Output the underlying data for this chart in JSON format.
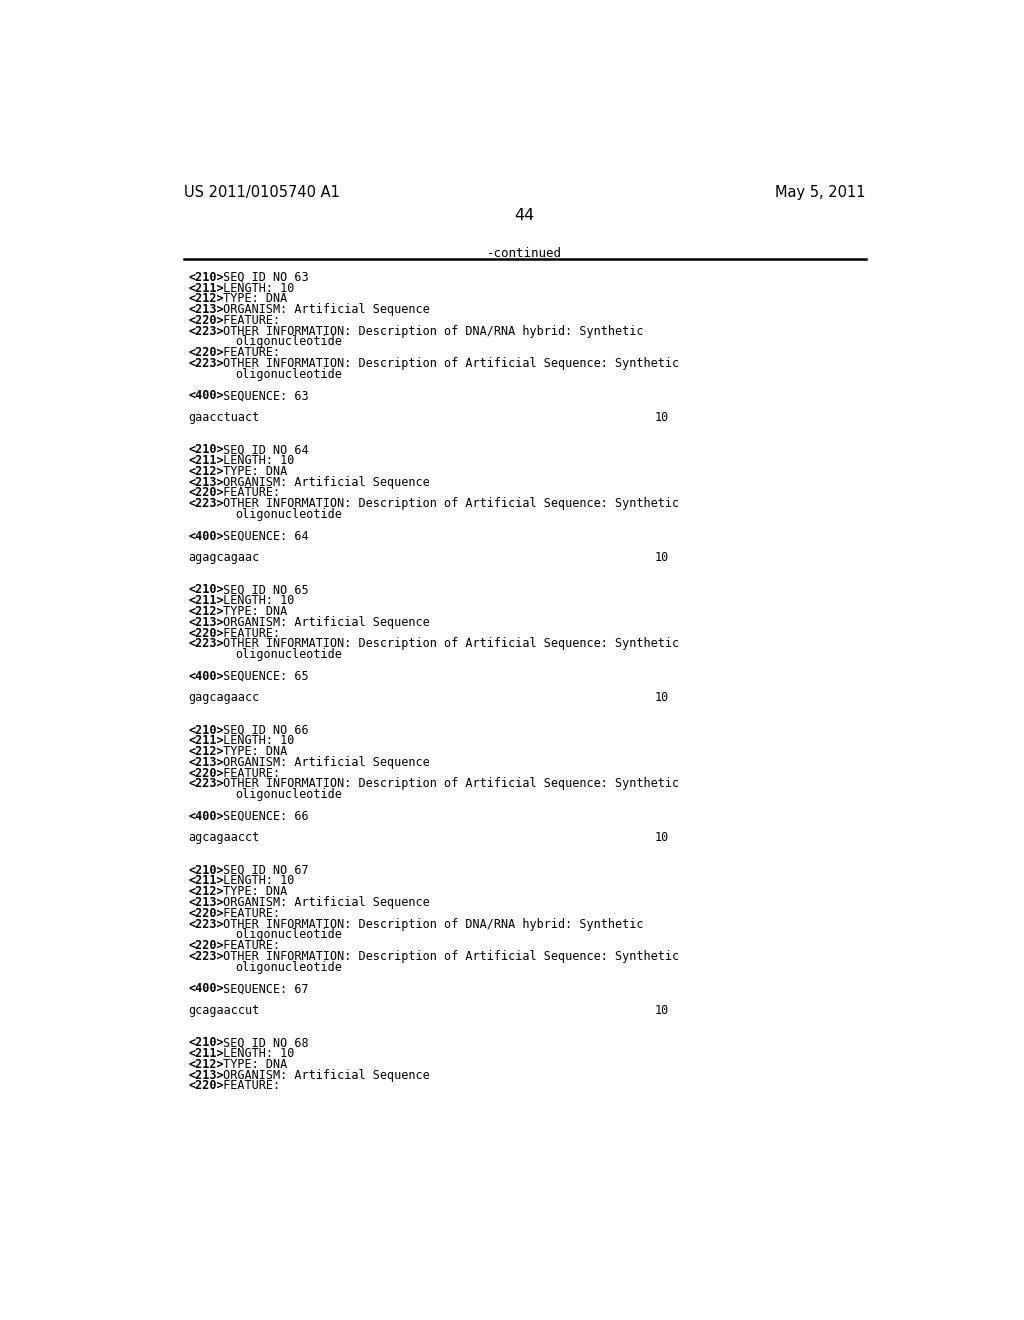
{
  "background_color": "#ffffff",
  "header_left": "US 2011/0105740 A1",
  "header_right": "May 5, 2011",
  "page_number": "44",
  "continued_text": "-continued",
  "content_lines": [
    {
      "bold_part": "<210>",
      "normal_part": " SEQ ID NO 63"
    },
    {
      "bold_part": "<211>",
      "normal_part": " LENGTH: 10"
    },
    {
      "bold_part": "<212>",
      "normal_part": " TYPE: DNA"
    },
    {
      "bold_part": "<213>",
      "normal_part": " ORGANISM: Artificial Sequence"
    },
    {
      "bold_part": "<220>",
      "normal_part": " FEATURE:"
    },
    {
      "bold_part": "<223>",
      "normal_part": " OTHER INFORMATION: Description of DNA/RNA hybrid: Synthetic"
    },
    {
      "indent_part": "      oligonucleotide"
    },
    {
      "bold_part": "<220>",
      "normal_part": " FEATURE:"
    },
    {
      "bold_part": "<223>",
      "normal_part": " OTHER INFORMATION: Description of Artificial Sequence: Synthetic"
    },
    {
      "indent_part": "      oligonucleotide"
    },
    {
      "blank": true
    },
    {
      "bold_part": "<400>",
      "normal_part": " SEQUENCE: 63"
    },
    {
      "blank": true
    },
    {
      "seq_line": "gaacctuact",
      "num": "10"
    },
    {
      "blank": true
    },
    {
      "blank": true
    },
    {
      "bold_part": "<210>",
      "normal_part": " SEQ ID NO 64"
    },
    {
      "bold_part": "<211>",
      "normal_part": " LENGTH: 10"
    },
    {
      "bold_part": "<212>",
      "normal_part": " TYPE: DNA"
    },
    {
      "bold_part": "<213>",
      "normal_part": " ORGANISM: Artificial Sequence"
    },
    {
      "bold_part": "<220>",
      "normal_part": " FEATURE:"
    },
    {
      "bold_part": "<223>",
      "normal_part": " OTHER INFORMATION: Description of Artificial Sequence: Synthetic"
    },
    {
      "indent_part": "      oligonucleotide"
    },
    {
      "blank": true
    },
    {
      "bold_part": "<400>",
      "normal_part": " SEQUENCE: 64"
    },
    {
      "blank": true
    },
    {
      "seq_line": "agagcagaac",
      "num": "10"
    },
    {
      "blank": true
    },
    {
      "blank": true
    },
    {
      "bold_part": "<210>",
      "normal_part": " SEQ ID NO 65"
    },
    {
      "bold_part": "<211>",
      "normal_part": " LENGTH: 10"
    },
    {
      "bold_part": "<212>",
      "normal_part": " TYPE: DNA"
    },
    {
      "bold_part": "<213>",
      "normal_part": " ORGANISM: Artificial Sequence"
    },
    {
      "bold_part": "<220>",
      "normal_part": " FEATURE:"
    },
    {
      "bold_part": "<223>",
      "normal_part": " OTHER INFORMATION: Description of Artificial Sequence: Synthetic"
    },
    {
      "indent_part": "      oligonucleotide"
    },
    {
      "blank": true
    },
    {
      "bold_part": "<400>",
      "normal_part": " SEQUENCE: 65"
    },
    {
      "blank": true
    },
    {
      "seq_line": "gagcagaacc",
      "num": "10"
    },
    {
      "blank": true
    },
    {
      "blank": true
    },
    {
      "bold_part": "<210>",
      "normal_part": " SEQ ID NO 66"
    },
    {
      "bold_part": "<211>",
      "normal_part": " LENGTH: 10"
    },
    {
      "bold_part": "<212>",
      "normal_part": " TYPE: DNA"
    },
    {
      "bold_part": "<213>",
      "normal_part": " ORGANISM: Artificial Sequence"
    },
    {
      "bold_part": "<220>",
      "normal_part": " FEATURE:"
    },
    {
      "bold_part": "<223>",
      "normal_part": " OTHER INFORMATION: Description of Artificial Sequence: Synthetic"
    },
    {
      "indent_part": "      oligonucleotide"
    },
    {
      "blank": true
    },
    {
      "bold_part": "<400>",
      "normal_part": " SEQUENCE: 66"
    },
    {
      "blank": true
    },
    {
      "seq_line": "agcagaacct",
      "num": "10"
    },
    {
      "blank": true
    },
    {
      "blank": true
    },
    {
      "bold_part": "<210>",
      "normal_part": " SEQ ID NO 67"
    },
    {
      "bold_part": "<211>",
      "normal_part": " LENGTH: 10"
    },
    {
      "bold_part": "<212>",
      "normal_part": " TYPE: DNA"
    },
    {
      "bold_part": "<213>",
      "normal_part": " ORGANISM: Artificial Sequence"
    },
    {
      "bold_part": "<220>",
      "normal_part": " FEATURE:"
    },
    {
      "bold_part": "<223>",
      "normal_part": " OTHER INFORMATION: Description of DNA/RNA hybrid: Synthetic"
    },
    {
      "indent_part": "      oligonucleotide"
    },
    {
      "bold_part": "<220>",
      "normal_part": " FEATURE:"
    },
    {
      "bold_part": "<223>",
      "normal_part": " OTHER INFORMATION: Description of Artificial Sequence: Synthetic"
    },
    {
      "indent_part": "      oligonucleotide"
    },
    {
      "blank": true
    },
    {
      "bold_part": "<400>",
      "normal_part": " SEQUENCE: 67"
    },
    {
      "blank": true
    },
    {
      "seq_line": "gcagaaccut",
      "num": "10"
    },
    {
      "blank": true
    },
    {
      "blank": true
    },
    {
      "bold_part": "<210>",
      "normal_part": " SEQ ID NO 68"
    },
    {
      "bold_part": "<211>",
      "normal_part": " LENGTH: 10"
    },
    {
      "bold_part": "<212>",
      "normal_part": " TYPE: DNA"
    },
    {
      "bold_part": "<213>",
      "normal_part": " ORGANISM: Artificial Sequence"
    },
    {
      "bold_part": "<220>",
      "normal_part": " FEATURE:"
    }
  ]
}
